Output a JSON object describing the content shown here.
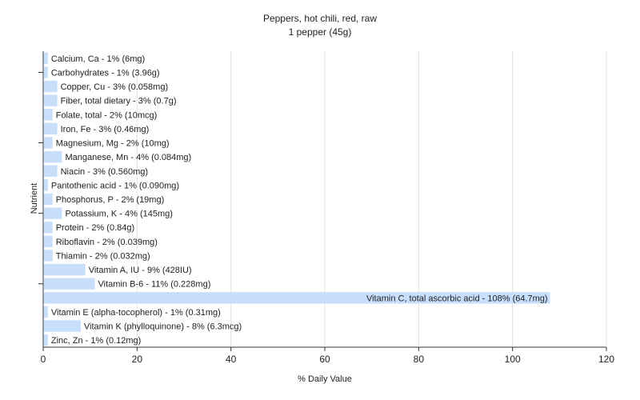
{
  "chart_data": {
    "type": "bar",
    "orientation": "horizontal",
    "title": "Peppers, hot chili, red, raw",
    "subtitle": "1 pepper (45g)",
    "xlabel": "% Daily Value",
    "ylabel": "Nutrient",
    "xlim": [
      0,
      120
    ],
    "xticks": [
      0,
      20,
      40,
      60,
      80,
      100,
      120
    ],
    "grid": "vertical",
    "bar_color": "#c8dffb",
    "categories": [
      "Calcium, Ca",
      "Carbohydrates",
      "Copper, Cu",
      "Fiber, total dietary",
      "Folate, total",
      "Iron, Fe",
      "Magnesium, Mg",
      "Manganese, Mn",
      "Niacin",
      "Pantothenic acid",
      "Phosphorus, P",
      "Potassium, K",
      "Protein",
      "Riboflavin",
      "Thiamin",
      "Vitamin A, IU",
      "Vitamin B-6",
      "Vitamin C, total ascorbic acid",
      "Vitamin E (alpha-tocopherol)",
      "Vitamin K (phylloquinone)",
      "Zinc, Zn"
    ],
    "values": [
      1,
      1,
      3,
      3,
      2,
      3,
      2,
      4,
      3,
      1,
      2,
      4,
      2,
      2,
      2,
      9,
      11,
      108,
      1,
      8,
      1
    ],
    "labels": [
      "Calcium, Ca - 1% (6mg)",
      "Carbohydrates - 1% (3.96g)",
      "Copper, Cu - 3% (0.058mg)",
      "Fiber, total dietary - 3% (0.7g)",
      "Folate, total - 2% (10mcg)",
      "Iron, Fe - 3% (0.46mg)",
      "Magnesium, Mg - 2% (10mg)",
      "Manganese, Mn - 4% (0.084mg)",
      "Niacin - 3% (0.560mg)",
      "Pantothenic acid - 1% (0.090mg)",
      "Phosphorus, P - 2% (19mg)",
      "Potassium, K - 4% (145mg)",
      "Protein - 2% (0.84g)",
      "Riboflavin - 2% (0.039mg)",
      "Thiamin - 2% (0.032mg)",
      "Vitamin A, IU - 9% (428IU)",
      "Vitamin B-6 - 11% (0.228mg)",
      "Vitamin C, total ascorbic acid - 108% (64.7mg)",
      "Vitamin E (alpha-tocopherol) - 1% (0.31mg)",
      "Vitamin K (phylloquinone) - 8% (6.3mcg)",
      "Zinc, Zn - 1% (0.12mg)"
    ]
  }
}
